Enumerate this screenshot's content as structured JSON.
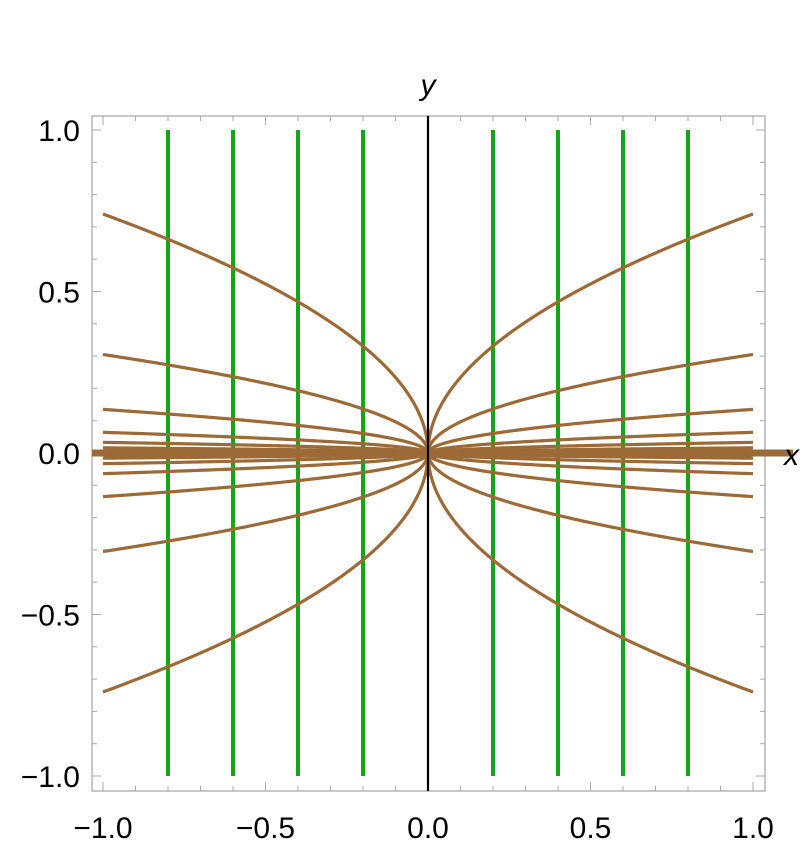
{
  "chart_data": {
    "type": "line",
    "title": "",
    "xlabel": "x",
    "ylabel": "y",
    "xlim": [
      -1.0,
      1.0
    ],
    "ylim": [
      -1.0,
      1.0
    ],
    "x_ticks": [
      "-1.0",
      "-0.5",
      "0.0",
      "0.5",
      "1.0"
    ],
    "y_ticks": [
      "-1.0",
      "-0.5",
      "0.0",
      "0.5",
      "1.0"
    ],
    "grid": false,
    "legend": "none",
    "colors": {
      "vertical_lines": "#16a516",
      "curves": "#9b6a36",
      "axis_line": "#000000",
      "frame": "#aaaaaa"
    },
    "vertical_lines_x": [
      -0.8,
      -0.6,
      -0.4,
      -0.2,
      0.2,
      0.4,
      0.6,
      0.8
    ],
    "curve_family": {
      "equation": "y = c * sign(x) * |x|^0.5",
      "c_values": [
        0.74,
        0.305,
        0.135,
        0.064,
        0.033,
        0.016,
        0.006,
        -0.006,
        -0.016,
        -0.033,
        -0.064,
        -0.135,
        -0.305,
        -0.74
      ]
    },
    "axis_curve": {
      "equation": "y = 0"
    }
  }
}
